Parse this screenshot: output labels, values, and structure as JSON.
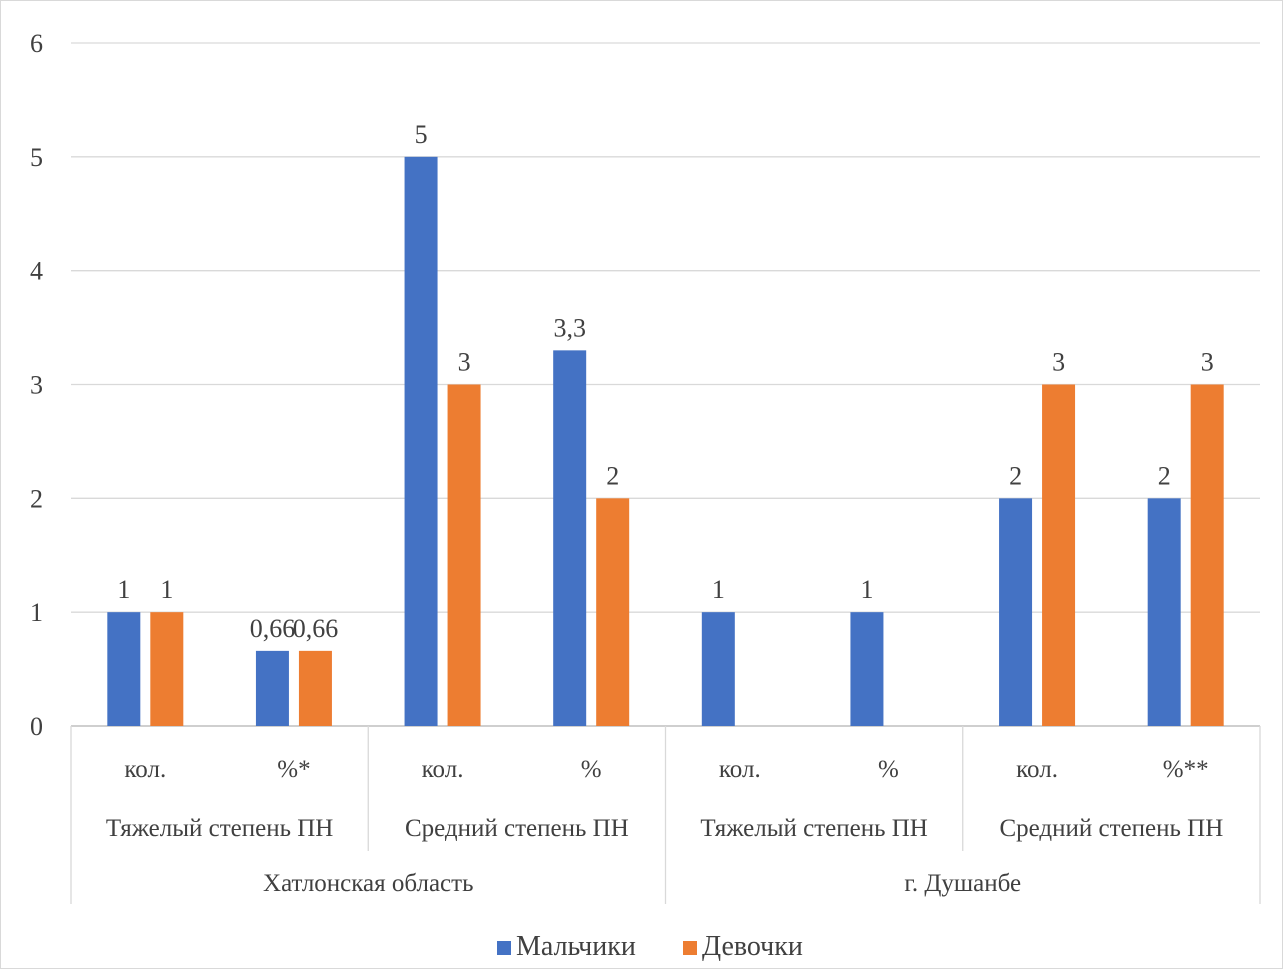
{
  "chart_data": {
    "type": "bar",
    "title": "",
    "xlabel": "",
    "ylabel": "",
    "ylim": [
      0,
      6
    ],
    "y_ticks": [
      0,
      1,
      2,
      3,
      4,
      5,
      6
    ],
    "grid": true,
    "legend_position": "bottom",
    "categories": [
      "кол.",
      "%*",
      "кол.",
      "%",
      "кол.",
      "%",
      "кол.",
      "%**"
    ],
    "category_groups_level2": [
      {
        "label": "Тяжелый степень ПН",
        "span": 2
      },
      {
        "label": "Средний степень ПН",
        "span": 2
      },
      {
        "label": "Тяжелый степень ПН",
        "span": 2
      },
      {
        "label": "Средний степень ПН",
        "span": 2
      }
    ],
    "category_groups_level1": [
      {
        "label": "Хатлонская область",
        "span": 4
      },
      {
        "label": "г. Душанбе",
        "span": 4
      }
    ],
    "series": [
      {
        "name": "Мальчики",
        "color": "#4472C4",
        "values": [
          1,
          0.66,
          5,
          3.3,
          1,
          1,
          2,
          2
        ],
        "data_labels": [
          "1",
          "0,66",
          "5",
          "3,3",
          "1",
          "1",
          "2",
          "2"
        ]
      },
      {
        "name": "Девочки",
        "color": "#ED7D31",
        "values": [
          1,
          0.66,
          3,
          2,
          null,
          null,
          3,
          3
        ],
        "data_labels": [
          "1",
          "0,66",
          "3",
          "2",
          "",
          "",
          "3",
          "3"
        ]
      }
    ],
    "note": "Tick labels and bar heights follow the printed axis (bars labeled 3 and 2 sit at the 3 and 2 gridlines)."
  }
}
